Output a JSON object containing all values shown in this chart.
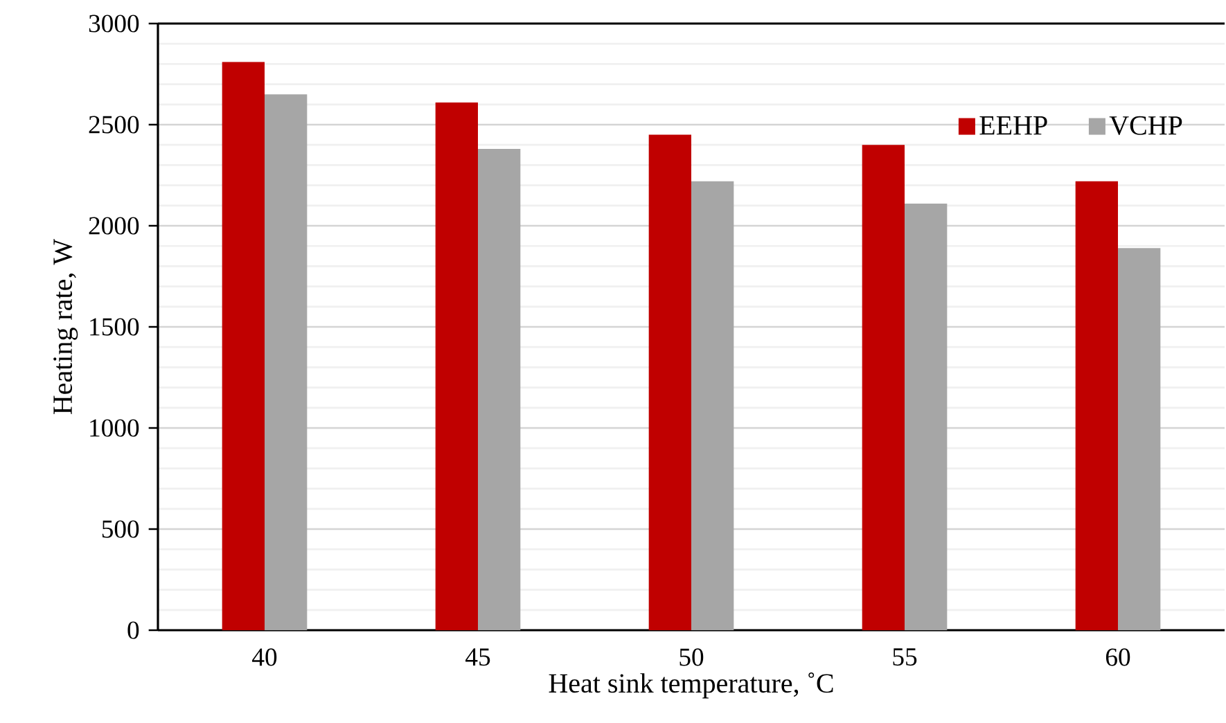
{
  "chart_data": {
    "type": "bar",
    "xlabel": "Heat sink temperature, ˚C",
    "ylabel": "Heating rate, W",
    "categories": [
      "40",
      "45",
      "50",
      "55",
      "60"
    ],
    "series": [
      {
        "name": "EEHP",
        "color": "#c00000",
        "values": [
          2810,
          2610,
          2450,
          2400,
          2220
        ]
      },
      {
        "name": "VCHP",
        "color": "#a6a6a6",
        "values": [
          2650,
          2380,
          2220,
          2110,
          1890
        ]
      }
    ],
    "ylim": [
      0,
      3000
    ],
    "yticks": [
      0,
      500,
      1000,
      1500,
      2000,
      2500,
      3000
    ],
    "grid": "y",
    "legend": "top right"
  }
}
